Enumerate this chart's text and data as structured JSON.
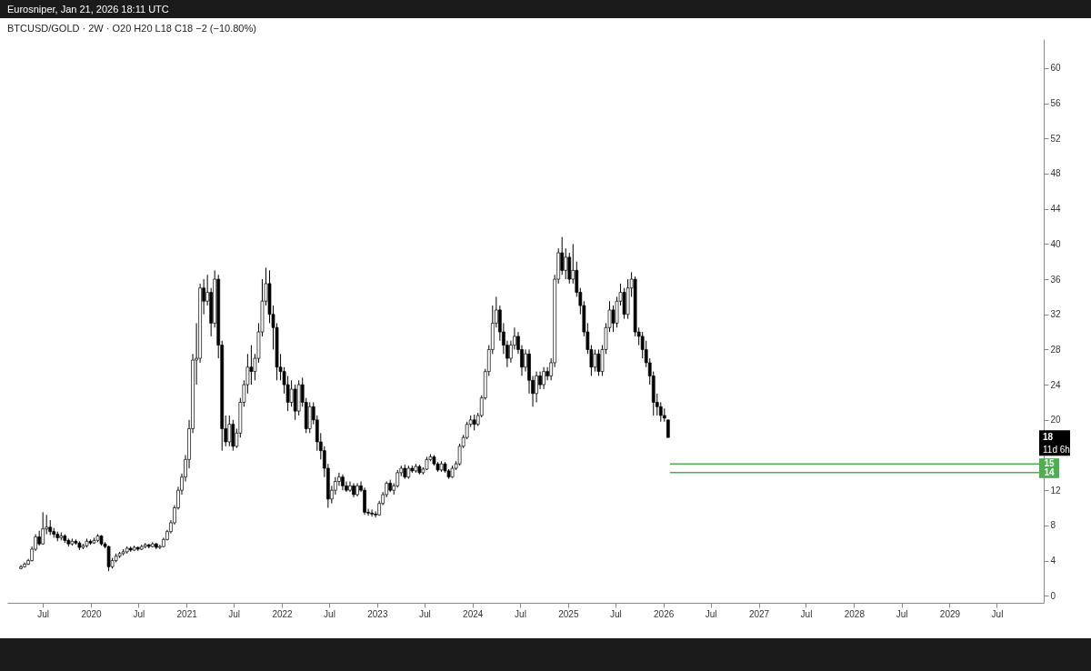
{
  "chart_data": {
    "type": "candlestick",
    "title": "BTCUSD/GOLD · 2W · O20 H20 L18 C18 −2 (−10.80%)",
    "annotations": [
      "Eurosniper, Jan 21, 2026 18:11 UTC",
      "18",
      "11d 6h"
    ],
    "x": [
      "2019-04-08",
      "2019-04-22",
      "2019-05-06",
      "2019-05-20",
      "2019-06-03",
      "2019-06-17",
      "2019-07-01",
      "2019-07-15",
      "2019-07-29",
      "2019-08-12",
      "2019-08-26",
      "2019-09-09",
      "2019-09-23",
      "2019-10-07",
      "2019-10-21",
      "2019-11-04",
      "2019-11-18",
      "2019-12-02",
      "2019-12-16",
      "2019-12-30",
      "2020-01-13",
      "2020-01-27",
      "2020-02-10",
      "2020-02-24",
      "2020-03-09",
      "2020-03-23",
      "2020-04-06",
      "2020-04-20",
      "2020-05-04",
      "2020-05-18",
      "2020-06-01",
      "2020-06-15",
      "2020-06-29",
      "2020-07-13",
      "2020-07-27",
      "2020-08-10",
      "2020-08-24",
      "2020-09-07",
      "2020-09-21",
      "2020-10-05",
      "2020-10-19",
      "2020-11-02",
      "2020-11-16",
      "2020-11-30",
      "2020-12-14",
      "2020-12-28",
      "2021-01-11",
      "2021-01-25",
      "2021-02-08",
      "2021-02-22",
      "2021-03-08",
      "2021-03-22",
      "2021-04-05",
      "2021-04-19",
      "2021-05-03",
      "2021-05-17",
      "2021-05-31",
      "2021-06-14",
      "2021-06-28",
      "2021-07-12",
      "2021-07-26",
      "2021-08-09",
      "2021-08-23",
      "2021-09-06",
      "2021-09-20",
      "2021-10-04",
      "2021-10-18",
      "2021-11-01",
      "2021-11-15",
      "2021-11-29",
      "2021-12-13",
      "2021-12-27",
      "2022-01-10",
      "2022-01-24",
      "2022-02-07",
      "2022-02-21",
      "2022-03-07",
      "2022-03-21",
      "2022-04-04",
      "2022-04-18",
      "2022-05-02",
      "2022-05-16",
      "2022-05-30",
      "2022-06-13",
      "2022-06-27",
      "2022-07-11",
      "2022-07-25",
      "2022-08-08",
      "2022-08-22",
      "2022-09-05",
      "2022-09-19",
      "2022-10-03",
      "2022-10-17",
      "2022-10-31",
      "2022-11-14",
      "2022-11-28",
      "2022-12-12",
      "2022-12-26",
      "2023-01-09",
      "2023-01-23",
      "2023-02-06",
      "2023-02-20",
      "2023-03-06",
      "2023-03-20",
      "2023-04-03",
      "2023-04-17",
      "2023-05-01",
      "2023-05-15",
      "2023-05-29",
      "2023-06-12",
      "2023-06-26",
      "2023-07-10",
      "2023-07-24",
      "2023-08-07",
      "2023-08-21",
      "2023-09-04",
      "2023-09-18",
      "2023-10-02",
      "2023-10-16",
      "2023-10-30",
      "2023-11-13",
      "2023-11-27",
      "2023-12-11",
      "2023-12-25",
      "2024-01-08",
      "2024-01-22",
      "2024-02-05",
      "2024-02-19",
      "2024-03-04",
      "2024-03-18",
      "2024-04-01",
      "2024-04-15",
      "2024-04-29",
      "2024-05-13",
      "2024-05-27",
      "2024-06-10",
      "2024-06-24",
      "2024-07-08",
      "2024-07-22",
      "2024-08-05",
      "2024-08-19",
      "2024-09-02",
      "2024-09-16",
      "2024-09-30",
      "2024-10-14",
      "2024-10-28",
      "2024-11-11",
      "2024-11-25",
      "2024-12-09",
      "2024-12-23",
      "2025-01-06",
      "2025-01-20",
      "2025-02-03",
      "2025-02-17",
      "2025-03-03",
      "2025-03-17",
      "2025-03-31",
      "2025-04-14",
      "2025-04-28",
      "2025-05-12",
      "2025-05-26",
      "2025-06-09",
      "2025-06-23",
      "2025-07-07",
      "2025-07-21",
      "2025-08-04",
      "2025-08-18",
      "2025-09-01",
      "2025-09-15",
      "2025-09-29",
      "2025-10-13",
      "2025-10-27",
      "2025-11-10",
      "2025-11-24",
      "2025-12-08",
      "2025-12-22",
      "2026-01-05",
      "2026-01-19"
    ],
    "ohlc": [
      [
        3.1,
        3.5,
        3.0,
        3.3
      ],
      [
        3.3,
        3.8,
        3.2,
        3.6
      ],
      [
        3.6,
        4.2,
        3.5,
        4.0
      ],
      [
        4.0,
        5.6,
        3.9,
        5.3
      ],
      [
        5.3,
        7.0,
        5.1,
        6.7
      ],
      [
        6.7,
        7.4,
        5.7,
        5.9
      ],
      [
        5.9,
        9.5,
        5.8,
        7.6
      ],
      [
        7.6,
        9.2,
        7.0,
        7.8
      ],
      [
        7.8,
        8.6,
        6.9,
        7.3
      ],
      [
        7.3,
        7.7,
        6.6,
        7.0
      ],
      [
        7.0,
        7.3,
        6.2,
        6.6
      ],
      [
        6.6,
        7.2,
        6.3,
        6.8
      ],
      [
        6.8,
        7.0,
        6.0,
        6.3
      ],
      [
        6.3,
        6.5,
        5.6,
        5.9
      ],
      [
        5.9,
        6.5,
        5.7,
        6.2
      ],
      [
        6.2,
        6.4,
        5.8,
        6.0
      ],
      [
        6.0,
        6.2,
        5.2,
        5.5
      ],
      [
        5.5,
        5.9,
        5.3,
        5.7
      ],
      [
        5.7,
        6.5,
        5.5,
        6.2
      ],
      [
        6.2,
        6.4,
        5.8,
        6.0
      ],
      [
        6.0,
        6.6,
        5.9,
        6.3
      ],
      [
        6.3,
        7.0,
        6.1,
        6.8
      ],
      [
        6.8,
        6.9,
        5.7,
        5.9
      ],
      [
        5.9,
        6.1,
        5.4,
        5.6
      ],
      [
        5.6,
        5.7,
        2.8,
        3.3
      ],
      [
        3.3,
        4.3,
        3.1,
        4.0
      ],
      [
        4.0,
        4.8,
        3.8,
        4.5
      ],
      [
        4.5,
        5.0,
        4.3,
        4.8
      ],
      [
        4.8,
        5.3,
        4.6,
        5.0
      ],
      [
        5.0,
        5.6,
        4.8,
        5.4
      ],
      [
        5.4,
        5.6,
        5.0,
        5.2
      ],
      [
        5.2,
        5.7,
        5.1,
        5.5
      ],
      [
        5.5,
        5.6,
        5.1,
        5.3
      ],
      [
        5.3,
        5.8,
        5.2,
        5.6
      ],
      [
        5.6,
        6.0,
        5.4,
        5.8
      ],
      [
        5.8,
        5.9,
        5.4,
        5.6
      ],
      [
        5.6,
        6.1,
        5.5,
        5.9
      ],
      [
        5.9,
        6.0,
        5.3,
        5.5
      ],
      [
        5.5,
        5.8,
        5.3,
        5.6
      ],
      [
        5.6,
        6.6,
        5.5,
        6.4
      ],
      [
        6.4,
        7.5,
        6.3,
        7.3
      ],
      [
        7.3,
        8.6,
        7.1,
        8.3
      ],
      [
        8.3,
        10.3,
        8.1,
        10.0
      ],
      [
        10.0,
        12.4,
        9.8,
        12.0
      ],
      [
        12.0,
        13.9,
        11.5,
        13.5
      ],
      [
        13.5,
        16.0,
        13.0,
        15.5
      ],
      [
        15.5,
        20.0,
        14.5,
        19.0
      ],
      [
        19.0,
        27.5,
        18.5,
        26.8
      ],
      [
        26.8,
        31.0,
        24.0,
        27.0
      ],
      [
        27.0,
        35.5,
        26.5,
        35.0
      ],
      [
        35.0,
        36.0,
        32.0,
        33.5
      ],
      [
        33.5,
        36.5,
        33.0,
        34.5
      ],
      [
        34.5,
        35.0,
        29.5,
        31.0
      ],
      [
        31.0,
        37.0,
        30.5,
        36.0
      ],
      [
        36.0,
        36.5,
        27.0,
        28.5
      ],
      [
        28.5,
        29.0,
        16.5,
        19.0
      ],
      [
        19.0,
        20.5,
        17.0,
        17.5
      ],
      [
        17.5,
        20.5,
        17.0,
        19.5
      ],
      [
        19.5,
        20.0,
        16.5,
        17.0
      ],
      [
        17.0,
        19.0,
        16.8,
        18.5
      ],
      [
        18.5,
        22.5,
        18.0,
        22.0
      ],
      [
        22.0,
        24.5,
        21.5,
        24.0
      ],
      [
        24.0,
        27.5,
        23.0,
        26.0
      ],
      [
        26.0,
        28.5,
        24.0,
        25.5
      ],
      [
        25.5,
        27.5,
        24.5,
        27.0
      ],
      [
        27.0,
        31.0,
        26.5,
        30.0
      ],
      [
        30.0,
        36.0,
        29.5,
        33.5
      ],
      [
        33.5,
        37.3,
        33.0,
        35.5
      ],
      [
        35.5,
        37.0,
        31.0,
        32.0
      ],
      [
        32.0,
        33.0,
        28.0,
        30.5
      ],
      [
        30.5,
        31.0,
        24.5,
        26.0
      ],
      [
        26.0,
        27.5,
        24.5,
        25.5
      ],
      [
        25.5,
        26.0,
        23.0,
        24.0
      ],
      [
        24.0,
        25.0,
        21.0,
        22.0
      ],
      [
        22.0,
        24.5,
        21.5,
        23.5
      ],
      [
        23.5,
        24.0,
        20.0,
        21.0
      ],
      [
        21.0,
        24.5,
        20.5,
        24.0
      ],
      [
        24.0,
        24.8,
        21.5,
        22.0
      ],
      [
        22.0,
        22.5,
        18.5,
        19.0
      ],
      [
        19.0,
        22.0,
        18.5,
        21.5
      ],
      [
        21.5,
        22.0,
        19.5,
        20.0
      ],
      [
        20.0,
        20.5,
        16.5,
        17.5
      ],
      [
        17.5,
        18.5,
        15.5,
        16.5
      ],
      [
        16.5,
        17.0,
        13.5,
        14.5
      ],
      [
        14.5,
        15.0,
        10.0,
        11.0
      ],
      [
        11.0,
        12.5,
        10.5,
        12.0
      ],
      [
        12.0,
        13.5,
        11.5,
        13.0
      ],
      [
        13.0,
        14.0,
        12.5,
        13.5
      ],
      [
        13.5,
        13.8,
        12.0,
        12.5
      ],
      [
        12.5,
        13.0,
        11.8,
        12.0
      ],
      [
        12.0,
        13.0,
        11.8,
        12.5
      ],
      [
        12.5,
        12.8,
        11.2,
        11.5
      ],
      [
        11.5,
        12.8,
        11.3,
        12.5
      ],
      [
        12.5,
        13.0,
        11.8,
        12.0
      ],
      [
        12.0,
        12.3,
        9.2,
        9.5
      ],
      [
        9.5,
        9.9,
        9.1,
        9.4
      ],
      [
        9.4,
        9.8,
        9.0,
        9.3
      ],
      [
        9.3,
        9.6,
        8.9,
        9.2
      ],
      [
        9.2,
        10.8,
        9.1,
        10.5
      ],
      [
        10.5,
        11.8,
        10.3,
        11.5
      ],
      [
        11.5,
        13.0,
        11.2,
        12.8
      ],
      [
        12.8,
        13.2,
        11.8,
        12.0
      ],
      [
        12.0,
        12.8,
        11.5,
        12.5
      ],
      [
        12.5,
        14.3,
        12.3,
        14.0
      ],
      [
        14.0,
        14.8,
        13.6,
        14.5
      ],
      [
        14.5,
        14.9,
        13.3,
        13.5
      ],
      [
        13.5,
        14.8,
        13.3,
        14.5
      ],
      [
        14.5,
        14.8,
        14.0,
        14.2
      ],
      [
        14.2,
        15.0,
        14.0,
        14.7
      ],
      [
        14.7,
        14.9,
        13.8,
        14.0
      ],
      [
        14.0,
        14.6,
        13.8,
        14.4
      ],
      [
        14.4,
        15.8,
        14.3,
        15.5
      ],
      [
        15.5,
        16.1,
        15.3,
        15.8
      ],
      [
        15.8,
        16.0,
        14.8,
        15.0
      ],
      [
        15.0,
        15.2,
        14.1,
        14.3
      ],
      [
        14.3,
        15.3,
        14.1,
        15.0
      ],
      [
        15.0,
        15.2,
        14.0,
        14.2
      ],
      [
        14.2,
        14.4,
        13.3,
        13.5
      ],
      [
        13.5,
        14.8,
        13.4,
        14.5
      ],
      [
        14.5,
        15.3,
        14.3,
        15.0
      ],
      [
        15.0,
        17.3,
        14.8,
        17.0
      ],
      [
        17.0,
        18.3,
        16.8,
        18.0
      ],
      [
        18.0,
        19.8,
        17.8,
        19.5
      ],
      [
        19.5,
        20.5,
        19.2,
        20.0
      ],
      [
        20.0,
        20.6,
        18.8,
        19.5
      ],
      [
        19.5,
        20.8,
        19.3,
        20.5
      ],
      [
        20.5,
        22.8,
        20.3,
        22.5
      ],
      [
        22.5,
        25.8,
        22.3,
        25.5
      ],
      [
        25.5,
        28.5,
        25.0,
        28.0
      ],
      [
        28.0,
        33.0,
        27.5,
        31.0
      ],
      [
        31.0,
        34.0,
        30.5,
        32.5
      ],
      [
        32.5,
        33.0,
        29.0,
        30.0
      ],
      [
        30.0,
        31.0,
        27.5,
        28.5
      ],
      [
        28.5,
        29.0,
        26.0,
        27.0
      ],
      [
        27.0,
        29.0,
        26.5,
        28.5
      ],
      [
        28.5,
        30.5,
        28.0,
        29.5
      ],
      [
        29.5,
        30.0,
        27.5,
        28.0
      ],
      [
        28.0,
        28.5,
        25.0,
        26.0
      ],
      [
        26.0,
        28.0,
        25.5,
        27.5
      ],
      [
        27.5,
        28.0,
        23.0,
        24.5
      ],
      [
        24.5,
        25.0,
        21.5,
        23.0
      ],
      [
        23.0,
        25.5,
        22.0,
        25.0
      ],
      [
        25.0,
        25.5,
        23.5,
        24.0
      ],
      [
        24.0,
        26.0,
        23.5,
        25.5
      ],
      [
        25.5,
        26.0,
        24.5,
        25.0
      ],
      [
        25.0,
        27.0,
        24.5,
        26.5
      ],
      [
        26.5,
        36.5,
        26.0,
        36.0
      ],
      [
        36.0,
        39.5,
        35.5,
        39.0
      ],
      [
        39.0,
        40.8,
        36.5,
        37.0
      ],
      [
        37.0,
        39.5,
        36.0,
        38.5
      ],
      [
        38.5,
        39.0,
        35.5,
        36.0
      ],
      [
        36.0,
        40.0,
        35.5,
        37.0
      ],
      [
        37.0,
        38.0,
        34.0,
        34.5
      ],
      [
        34.5,
        35.0,
        32.0,
        33.0
      ],
      [
        33.0,
        33.5,
        29.5,
        30.0
      ],
      [
        30.0,
        31.0,
        27.5,
        28.0
      ],
      [
        28.0,
        28.5,
        25.0,
        26.0
      ],
      [
        26.0,
        28.0,
        25.5,
        27.5
      ],
      [
        27.5,
        28.0,
        25.0,
        25.5
      ],
      [
        25.5,
        28.5,
        25.0,
        28.0
      ],
      [
        28.0,
        31.0,
        27.5,
        30.5
      ],
      [
        30.5,
        33.5,
        30.0,
        32.5
      ],
      [
        32.5,
        33.0,
        30.0,
        31.0
      ],
      [
        31.0,
        34.0,
        30.5,
        33.5
      ],
      [
        33.5,
        35.5,
        33.0,
        34.5
      ],
      [
        34.5,
        35.0,
        31.5,
        32.0
      ],
      [
        32.0,
        36.0,
        31.5,
        35.0
      ],
      [
        35.0,
        36.8,
        34.0,
        36.0
      ],
      [
        36.0,
        36.3,
        29.5,
        30.0
      ],
      [
        30.0,
        30.5,
        28.5,
        29.5
      ],
      [
        29.5,
        30.0,
        27.0,
        28.0
      ],
      [
        28.0,
        29.0,
        26.0,
        26.5
      ],
      [
        26.5,
        27.0,
        24.0,
        25.0
      ],
      [
        25.0,
        25.5,
        20.5,
        22.0
      ],
      [
        22.0,
        23.0,
        20.5,
        21.5
      ],
      [
        21.5,
        22.0,
        19.8,
        20.5
      ],
      [
        20.5,
        21.3,
        19.8,
        20.2
      ],
      [
        20,
        20,
        18,
        18
      ]
    ],
    "xlim": [
      "2019-03-04",
      "2029-12-10"
    ],
    "xticks": [
      {
        "value": "2019-07-01",
        "label": "Jul"
      },
      {
        "value": "2020-01-01",
        "label": "2020"
      },
      {
        "value": "2020-07-01",
        "label": "Jul"
      },
      {
        "value": "2021-01-01",
        "label": "2021"
      },
      {
        "value": "2021-07-01",
        "label": "Jul"
      },
      {
        "value": "2022-01-01",
        "label": "2022"
      },
      {
        "value": "2022-07-01",
        "label": "Jul"
      },
      {
        "value": "2023-01-01",
        "label": "2023"
      },
      {
        "value": "2023-07-01",
        "label": "Jul"
      },
      {
        "value": "2024-01-01",
        "label": "2024"
      },
      {
        "value": "2024-07-01",
        "label": "Jul"
      },
      {
        "value": "2025-01-01",
        "label": "2025"
      },
      {
        "value": "2025-07-01",
        "label": "Jul"
      },
      {
        "value": "2026-01-01",
        "label": "2026"
      },
      {
        "value": "2026-07-01",
        "label": "Jul"
      },
      {
        "value": "2027-01-01",
        "label": "2027"
      },
      {
        "value": "2027-07-01",
        "label": "Jul"
      },
      {
        "value": "2028-01-01",
        "label": "2028"
      },
      {
        "value": "2028-07-01",
        "label": "Jul"
      },
      {
        "value": "2029-01-01",
        "label": "2029"
      },
      {
        "value": "2029-07-01",
        "label": "Jul"
      }
    ],
    "ylim": [
      -0.8,
      63.3
    ],
    "yticks": [
      0,
      4,
      8,
      12,
      20,
      24,
      28,
      32,
      36,
      40,
      44,
      48,
      52,
      56,
      60
    ],
    "ref_lines": [
      {
        "axis": "y",
        "value": 15,
        "label": "15",
        "color": "#4caf50"
      },
      {
        "axis": "y",
        "value": 14,
        "label": "14",
        "color": "#4caf50"
      }
    ],
    "grid": false,
    "legend": false
  }
}
